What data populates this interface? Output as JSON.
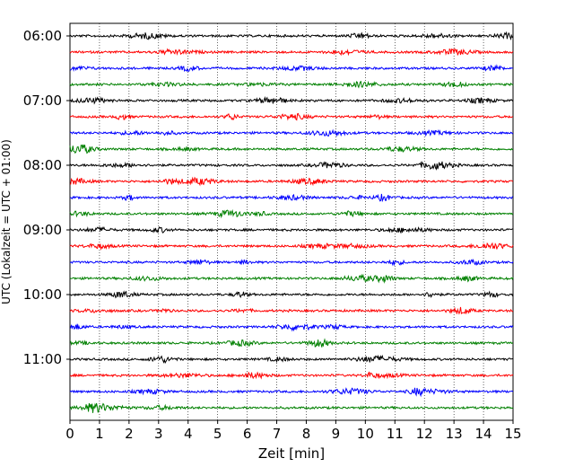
{
  "chart_data": {
    "type": "line",
    "title": "",
    "xlabel": "Zeit  [min]",
    "ylabel": "UTC (Lokalzeit = UTC + 01:00)",
    "xlim": [
      0,
      15
    ],
    "x_ticks": [
      0,
      1,
      2,
      3,
      4,
      5,
      6,
      7,
      8,
      9,
      10,
      11,
      12,
      13,
      14,
      15
    ],
    "x_tick_labels": [
      "0",
      "1",
      "2",
      "3",
      "4",
      "5",
      "6",
      "7",
      "8",
      "9",
      "10",
      "11",
      "12",
      "13",
      "14",
      "15"
    ],
    "y_tick_labels": [
      "06:00",
      "07:00",
      "08:00",
      "09:00",
      "10:00",
      "11:00"
    ],
    "trace_minutes": 15,
    "traces_per_hour": 4,
    "grid": "vertical dotted",
    "line_colors": [
      "#000000",
      "#ff0000",
      "#0000ff",
      "#008000"
    ],
    "series": [
      {
        "start": "06:00",
        "color": "#000000"
      },
      {
        "start": "06:15",
        "color": "#ff0000"
      },
      {
        "start": "06:30",
        "color": "#0000ff"
      },
      {
        "start": "06:45",
        "color": "#008000"
      },
      {
        "start": "07:00",
        "color": "#000000"
      },
      {
        "start": "07:15",
        "color": "#ff0000"
      },
      {
        "start": "07:30",
        "color": "#0000ff"
      },
      {
        "start": "07:45",
        "color": "#008000"
      },
      {
        "start": "08:00",
        "color": "#000000"
      },
      {
        "start": "08:15",
        "color": "#ff0000"
      },
      {
        "start": "08:30",
        "color": "#0000ff"
      },
      {
        "start": "08:45",
        "color": "#008000"
      },
      {
        "start": "09:00",
        "color": "#000000"
      },
      {
        "start": "09:15",
        "color": "#ff0000"
      },
      {
        "start": "09:30",
        "color": "#0000ff"
      },
      {
        "start": "09:45",
        "color": "#008000"
      },
      {
        "start": "10:00",
        "color": "#000000"
      },
      {
        "start": "10:15",
        "color": "#ff0000"
      },
      {
        "start": "10:30",
        "color": "#0000ff"
      },
      {
        "start": "10:45",
        "color": "#008000"
      },
      {
        "start": "11:00",
        "color": "#000000"
      },
      {
        "start": "11:15",
        "color": "#ff0000"
      },
      {
        "start": "11:30",
        "color": "#0000ff"
      },
      {
        "start": "11:45",
        "color": "#008000"
      }
    ]
  }
}
